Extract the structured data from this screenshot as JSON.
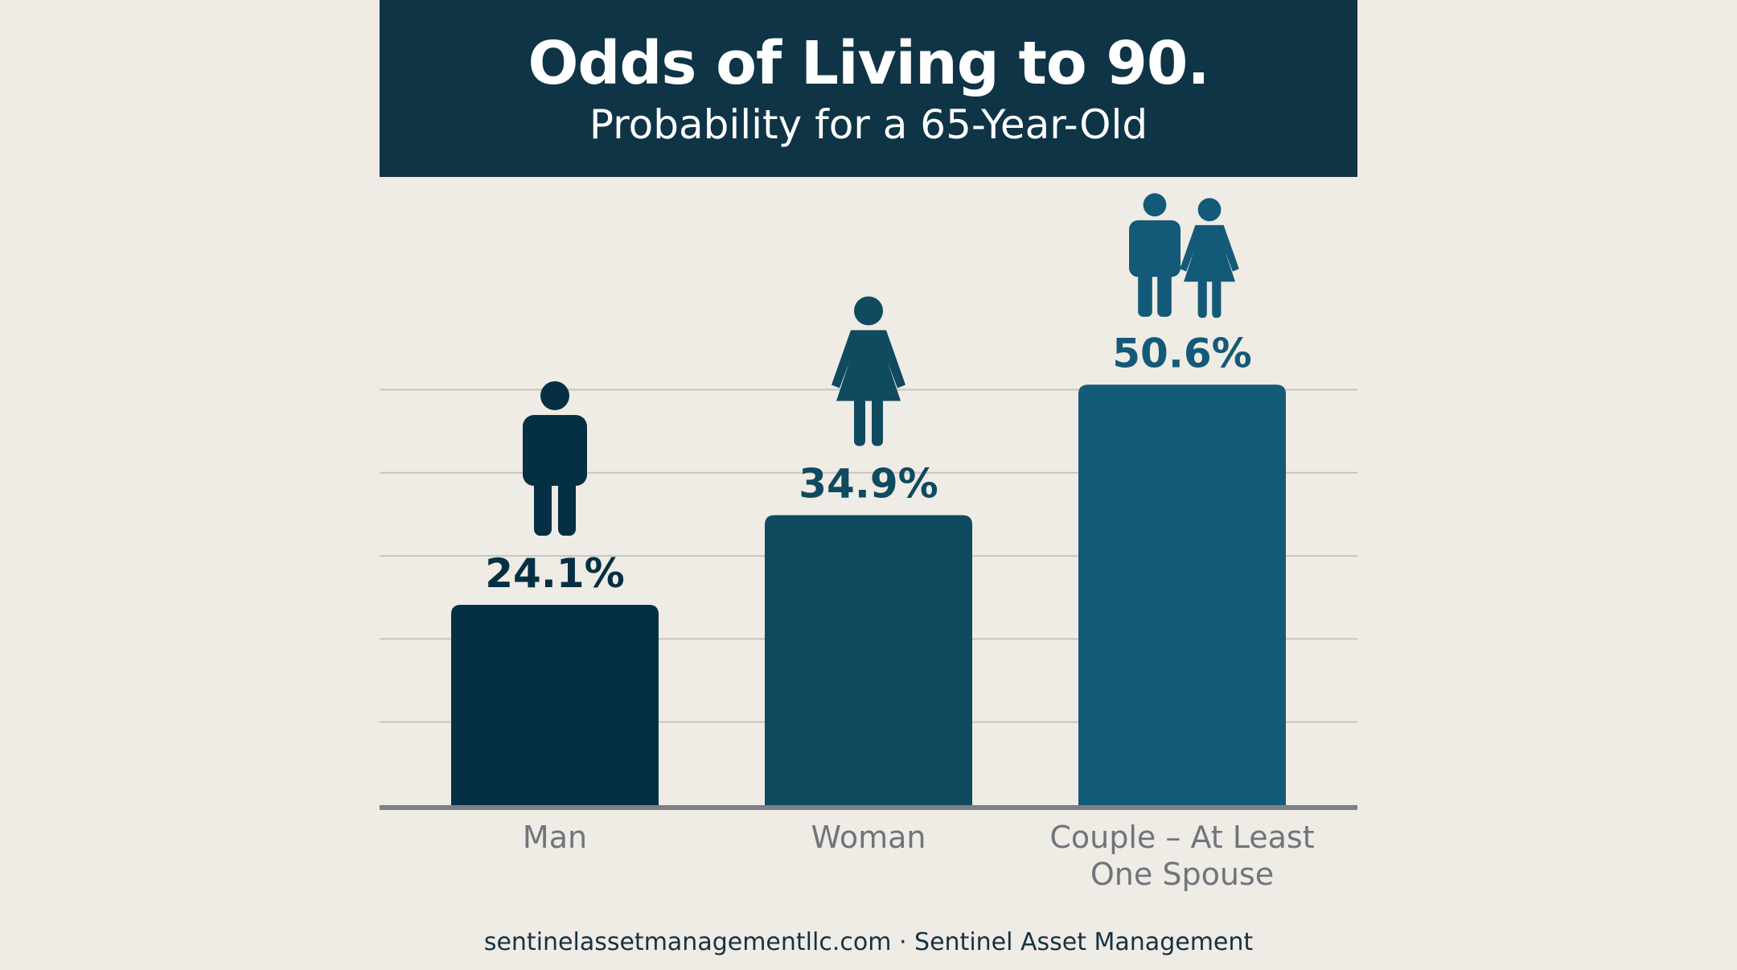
{
  "header": {
    "title": "Odds of Living to 90.",
    "subtitle": "Probability for a 65-Year-Old"
  },
  "chart_data": {
    "type": "bar",
    "title": "Odds of Living to 90.",
    "subtitle": "Probability for a 65-Year-Old",
    "categories": [
      "Man",
      "Woman",
      "Couple – At Least One Spouse"
    ],
    "values": [
      24.1,
      34.9,
      50.6
    ],
    "value_labels": [
      "24.1%",
      "34.9%",
      "50.6%"
    ],
    "icons": [
      "man-icon",
      "woman-icon",
      "couple-icon"
    ],
    "colors": [
      "#053043",
      "#0f4a5f",
      "#135a78"
    ],
    "xlabel": "",
    "ylabel": "",
    "ylim": [
      0,
      60
    ],
    "grid": true,
    "legend": "none"
  },
  "footer": {
    "text": "sentinelassetmanagementllc.com · Sentinel Asset Management"
  }
}
